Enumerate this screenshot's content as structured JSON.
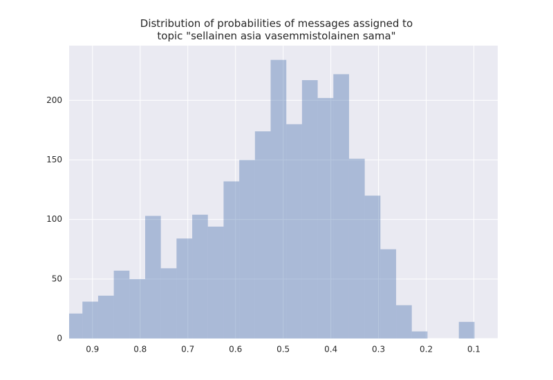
{
  "chart_data": {
    "type": "histogram",
    "title": "Distribution of probabilities of messages assigned to\ntopic \"sellainen asia vasemmistolainen sama\"",
    "bins": [
      0.0986,
      0.1315,
      0.1644,
      0.1973,
      0.2302,
      0.2631,
      0.296,
      0.3289,
      0.3618,
      0.3947,
      0.4276,
      0.4605,
      0.4934,
      0.5263,
      0.5592,
      0.5921,
      0.625,
      0.6579,
      0.6908,
      0.7237,
      0.7566,
      0.7895,
      0.8224,
      0.8553,
      0.8882,
      0.9211,
      0.954
    ],
    "values": [
      14,
      0,
      0,
      6,
      28,
      75,
      120,
      151,
      222,
      202,
      217,
      180,
      234,
      174,
      150,
      132,
      94,
      104,
      84,
      59,
      103,
      50,
      57,
      36,
      31,
      21
    ],
    "color": "#4c72b0",
    "xlim": [
      0.949,
      0.05
    ],
    "xticks": [
      0.9,
      0.8,
      0.7,
      0.6,
      0.5,
      0.4,
      0.3,
      0.2,
      0.1
    ],
    "ylim": [
      0,
      246
    ],
    "yticks": [
      0,
      50,
      100,
      150,
      200
    ],
    "grid": true
  }
}
